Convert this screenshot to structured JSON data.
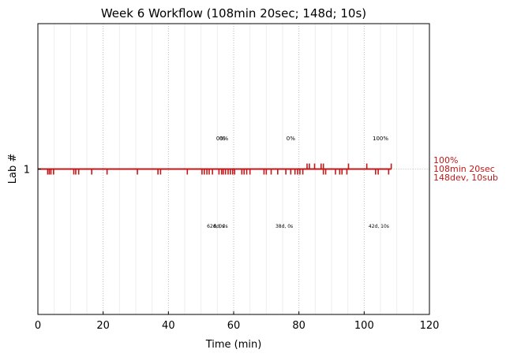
{
  "chart_data": {
    "type": "scatter",
    "title": "Week 6 Workflow (108min 20sec; 148d; 10s)",
    "xlabel": "Time (min)",
    "ylabel": "Lab #",
    "xlim": [
      0,
      120
    ],
    "x_ticks": [
      0,
      20,
      40,
      60,
      80,
      100,
      120
    ],
    "x_tick_labels": [
      "0",
      "20",
      "40",
      "60",
      "80",
      "100",
      "120"
    ],
    "y_ticks": [
      1
    ],
    "y_tick_labels": [
      "1"
    ],
    "grid": "vertical dotted",
    "colors": {
      "line": "#c01818",
      "grid_major": "#bbbbbb",
      "grid_minor": "#eeeeee",
      "summary_text": "#c01818"
    },
    "series": [
      {
        "row": 1,
        "end_time": 108.3,
        "events_below": [
          3,
          3.5,
          4,
          4.8,
          11,
          11.6,
          12.5,
          16.5,
          21.2,
          30.5,
          36.8,
          37.6,
          45.8,
          50.3,
          51,
          51.8,
          52.5,
          53.5,
          55.5,
          56.3,
          56.8,
          57.5,
          58.3,
          59,
          59.7,
          60.3,
          62.5,
          63.2,
          64,
          65,
          69.3,
          70,
          71.5,
          73.5,
          76,
          77.5,
          78.8,
          79.6,
          80.3,
          81.2,
          87.5,
          88.2,
          91.2,
          92.5,
          93.2,
          94.7,
          103.5,
          104.3,
          107.5
        ],
        "events_above": [
          82.5,
          83.2,
          84.8,
          86.8,
          87.5,
          95.2,
          100.8,
          108.3
        ],
        "percent_labels": [
          {
            "x": 56,
            "text": "0%"
          },
          {
            "x": 57,
            "text": "0%"
          },
          {
            "x": 77.5,
            "text": "0%"
          },
          {
            "x": 105,
            "text": "100%"
          }
        ],
        "stat_labels": [
          {
            "x": 54.5,
            "text": "62d, 0s"
          },
          {
            "x": 56,
            "text": "8d, 0s"
          },
          {
            "x": 75.5,
            "text": "38d, 0s"
          },
          {
            "x": 104.5,
            "text": "42d, 10s"
          }
        ],
        "summary": [
          "100%",
          "108min 20sec",
          "148dev, 10sub"
        ]
      }
    ]
  }
}
